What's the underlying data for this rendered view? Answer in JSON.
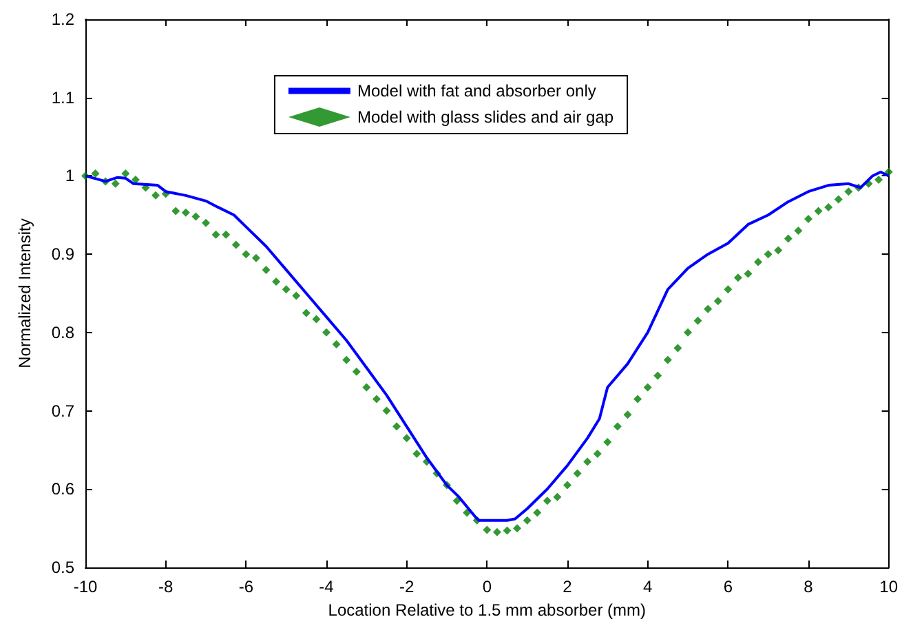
{
  "chart_data": {
    "type": "line",
    "xlabel": "Location Relative to 1.5 mm absorber (mm)",
    "ylabel": "Normalized Intensity",
    "xlim": [
      -10,
      10
    ],
    "xticks": [
      -10,
      -8,
      -6,
      -4,
      -2,
      0,
      2,
      4,
      6,
      8,
      10
    ],
    "ylim": [
      0.5,
      1.2
    ],
    "yticks": [
      0.5,
      0.6,
      0.7,
      0.8,
      0.9,
      1,
      1.1,
      1.2
    ],
    "grid": false,
    "legend": "top",
    "series": [
      {
        "name": "Model with fat and absorber only",
        "color": "#0000ff",
        "marker": "none",
        "x": [
          -10,
          -9.5,
          -9.2,
          -9,
          -8.8,
          -8.2,
          -8,
          -7.5,
          -7,
          -6.7,
          -6.3,
          -6,
          -5.5,
          -5,
          -4.5,
          -4,
          -3.5,
          -3,
          -2.5,
          -2,
          -1.5,
          -1,
          -0.7,
          -0.3,
          -0.2,
          0,
          0.5,
          0.7,
          1,
          1.5,
          2,
          2.5,
          2.8,
          3,
          3.5,
          4,
          4.5,
          5,
          5.5,
          6,
          6.5,
          7,
          7.5,
          8,
          8.5,
          9,
          9.3,
          9.6,
          9.8,
          10
        ],
        "values": [
          1.0,
          0.993,
          0.998,
          0.997,
          0.99,
          0.988,
          0.98,
          0.975,
          0.968,
          0.96,
          0.95,
          0.935,
          0.91,
          0.88,
          0.85,
          0.82,
          0.79,
          0.755,
          0.72,
          0.68,
          0.64,
          0.605,
          0.59,
          0.565,
          0.56,
          0.56,
          0.56,
          0.562,
          0.575,
          0.6,
          0.63,
          0.665,
          0.69,
          0.73,
          0.76,
          0.8,
          0.855,
          0.882,
          0.9,
          0.914,
          0.938,
          0.95,
          0.967,
          0.98,
          0.988,
          0.99,
          0.985,
          1.0,
          1.005,
          1.0
        ]
      },
      {
        "name": "Model with glass slides and air gap",
        "color": "#008000",
        "type": "scatter",
        "marker": "diamond",
        "x": [
          -10,
          -9.75,
          -9.5,
          -9.25,
          -9,
          -8.75,
          -8.5,
          -8.25,
          -8,
          -7.75,
          -7.5,
          -7.25,
          -7,
          -6.75,
          -6.5,
          -6.25,
          -6,
          -5.75,
          -5.5,
          -5.25,
          -5,
          -4.75,
          -4.5,
          -4.25,
          -4,
          -3.75,
          -3.5,
          -3.25,
          -3,
          -2.75,
          -2.5,
          -2.25,
          -2,
          -1.75,
          -1.5,
          -1.25,
          -1,
          -0.75,
          -0.5,
          -0.25,
          0,
          0.25,
          0.5,
          0.75,
          1,
          1.25,
          1.5,
          1.75,
          2,
          2.25,
          2.5,
          2.75,
          3,
          3.25,
          3.5,
          3.75,
          4,
          4.25,
          4.5,
          4.75,
          5,
          5.25,
          5.5,
          5.75,
          6,
          6.25,
          6.5,
          6.75,
          7,
          7.25,
          7.5,
          7.75,
          8,
          8.25,
          8.5,
          8.75,
          9,
          9.25,
          9.5,
          9.75,
          10
        ],
        "values": [
          1.0,
          1.003,
          0.993,
          0.99,
          1.003,
          0.995,
          0.985,
          0.975,
          0.977,
          0.955,
          0.953,
          0.948,
          0.94,
          0.925,
          0.925,
          0.912,
          0.9,
          0.895,
          0.88,
          0.865,
          0.855,
          0.847,
          0.825,
          0.817,
          0.8,
          0.785,
          0.765,
          0.75,
          0.73,
          0.715,
          0.7,
          0.68,
          0.665,
          0.645,
          0.635,
          0.62,
          0.605,
          0.585,
          0.57,
          0.56,
          0.548,
          0.545,
          0.547,
          0.55,
          0.56,
          0.57,
          0.585,
          0.59,
          0.605,
          0.62,
          0.635,
          0.645,
          0.66,
          0.68,
          0.695,
          0.715,
          0.73,
          0.745,
          0.765,
          0.78,
          0.8,
          0.815,
          0.83,
          0.84,
          0.855,
          0.87,
          0.875,
          0.89,
          0.9,
          0.905,
          0.92,
          0.93,
          0.945,
          0.955,
          0.96,
          0.97,
          0.98,
          0.985,
          0.99,
          0.995,
          1.005
        ]
      }
    ]
  }
}
